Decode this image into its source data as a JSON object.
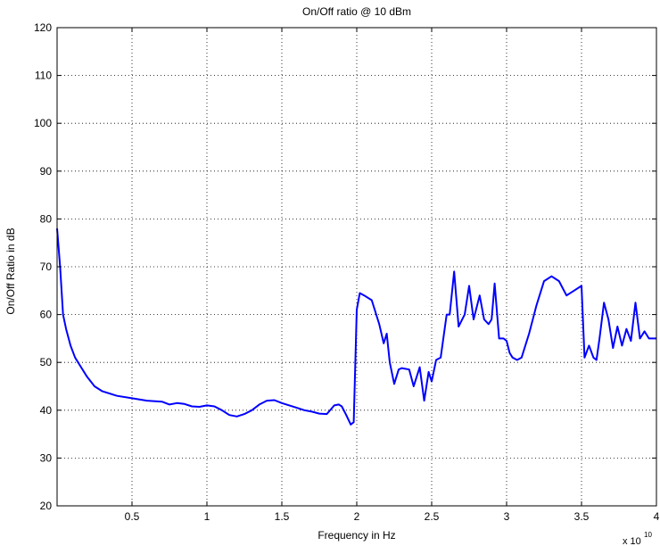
{
  "chart_data": {
    "type": "line",
    "title": "On/Off ratio @ 10 dBm",
    "xlabel": "Frequency in Hz",
    "ylabel": "On/Off Ratio in dB",
    "x_exponent_label": "x 10",
    "x_exponent_power": "10",
    "xlim": [
      0,
      4
    ],
    "ylim": [
      20,
      120
    ],
    "x_ticks": [
      0.5,
      1,
      1.5,
      2,
      2.5,
      3,
      3.5,
      4
    ],
    "x_tick_labels": [
      "0.5",
      "1",
      "1.5",
      "2",
      "2.5",
      "3",
      "3.5",
      "4"
    ],
    "y_ticks": [
      20,
      30,
      40,
      50,
      60,
      70,
      80,
      90,
      100,
      110,
      120
    ],
    "y_tick_labels": [
      "20",
      "30",
      "40",
      "50",
      "60",
      "70",
      "80",
      "90",
      "100",
      "110",
      "120"
    ],
    "grid": true,
    "grid_style": "dotted",
    "line_color": "#0000ff",
    "series": [
      {
        "x": [
          0.0,
          0.02,
          0.04,
          0.06,
          0.09,
          0.12,
          0.15,
          0.2,
          0.25,
          0.3,
          0.4,
          0.5,
          0.6,
          0.7,
          0.75,
          0.8,
          0.85,
          0.9,
          0.95,
          1.0,
          1.05,
          1.1,
          1.15,
          1.2,
          1.25,
          1.3,
          1.35,
          1.4,
          1.45,
          1.5,
          1.55,
          1.6,
          1.65,
          1.7,
          1.75,
          1.8,
          1.85,
          1.88,
          1.9,
          1.93,
          1.96,
          1.98,
          2.0,
          2.02,
          2.05,
          2.1,
          2.15,
          2.18,
          2.2,
          2.22,
          2.25,
          2.28,
          2.3,
          2.35,
          2.38,
          2.42,
          2.45,
          2.48,
          2.5,
          2.53,
          2.56,
          2.6,
          2.62,
          2.65,
          2.68,
          2.72,
          2.75,
          2.78,
          2.82,
          2.85,
          2.88,
          2.9,
          2.92,
          2.95,
          2.98,
          3.0,
          3.02,
          3.04,
          3.07,
          3.1,
          3.15,
          3.2,
          3.25,
          3.3,
          3.35,
          3.4,
          3.45,
          3.5,
          3.52,
          3.55,
          3.58,
          3.6,
          3.62,
          3.65,
          3.68,
          3.71,
          3.74,
          3.77,
          3.8,
          3.83,
          3.86,
          3.89,
          3.92,
          3.95,
          4.0
        ],
        "y": [
          78,
          70,
          60,
          57,
          53.5,
          51,
          49.5,
          47,
          45,
          44,
          43,
          42.5,
          42,
          41.8,
          41.2,
          41.5,
          41.3,
          40.8,
          40.7,
          41,
          40.8,
          40,
          39,
          38.7,
          39.2,
          40,
          41.2,
          42,
          42.1,
          41.5,
          41,
          40.5,
          40,
          39.7,
          39.3,
          39.2,
          41,
          41.2,
          40.8,
          39,
          37,
          37.5,
          61,
          64.5,
          64,
          63,
          58,
          54,
          56,
          50,
          45.5,
          48.5,
          48.8,
          48.5,
          45,
          49,
          42,
          48,
          46,
          50.5,
          51,
          60,
          60,
          69,
          57.5,
          60,
          66,
          59,
          64,
          59,
          58,
          59,
          66.5,
          55,
          55,
          54.5,
          52,
          51,
          50.5,
          51,
          56,
          62,
          67,
          68,
          67,
          64,
          65,
          66,
          51,
          53.5,
          51,
          50.5,
          55,
          62.5,
          59,
          53,
          57.5,
          53.5,
          57,
          54.5,
          62.5,
          55,
          56.5,
          55,
          55
        ]
      }
    ]
  }
}
